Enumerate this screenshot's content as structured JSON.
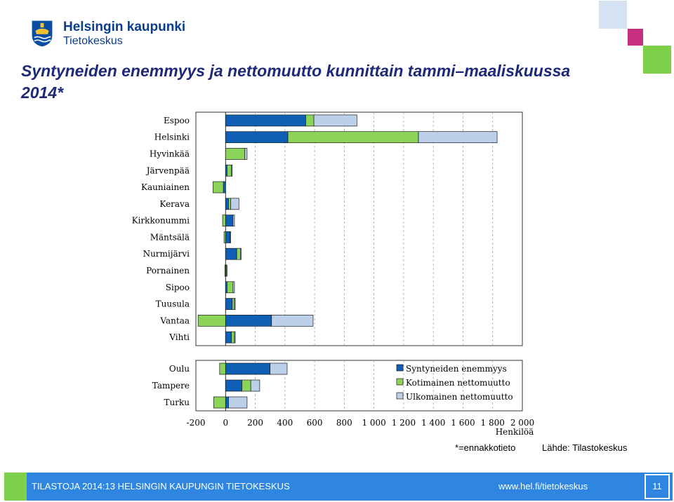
{
  "header": {
    "logo_line1": "Helsingin kaupunki",
    "logo_line2": "Tietokeskus"
  },
  "title": "Syntyneiden enemmyys ja nettomuutto kunnittain tammi–maaliskuussa 2014*",
  "colors": {
    "births": "#0f5fb5",
    "domestic": "#8cd35a",
    "foreign": "#bcd0ea",
    "footer_blue": "#2e86e0",
    "footer_green": "#7ed04b",
    "deco_pink": "#c72f7f",
    "deco_lightblue": "#d4e2f2"
  },
  "chart_data": {
    "type": "bar",
    "orientation": "horizontal",
    "stacked": true,
    "categories": [
      "Espoo",
      "Helsinki",
      "Hyvinkää",
      "Järvenpää",
      "Kauniainen",
      "Kerava",
      "Kirkkonummi",
      "Mäntsälä",
      "Nurmijärvi",
      "Pornainen",
      "Sipoo",
      "Tuusula",
      "Vantaa",
      "Vihti",
      "Oulu",
      "Tampere",
      "Turku"
    ],
    "groups": [
      {
        "categories": [
          "Espoo",
          "Helsinki",
          "Hyvinkää",
          "Järvenpää",
          "Kauniainen",
          "Kerava",
          "Kirkkonummi",
          "Mäntsälä",
          "Nurmijärvi",
          "Pornainen",
          "Sipoo",
          "Tuusula",
          "Vantaa",
          "Vihti"
        ]
      },
      {
        "categories": [
          "Oulu",
          "Tampere",
          "Turku"
        ]
      }
    ],
    "series": [
      {
        "name": "Syntyneiden enemmyys",
        "values": [
          540,
          420,
          0,
          10,
          -15,
          20,
          50,
          30,
          75,
          5,
          10,
          45,
          310,
          40,
          300,
          110,
          20
        ]
      },
      {
        "name": "Kotimainen nettomuutto",
        "values": [
          55,
          880,
          130,
          30,
          -70,
          15,
          -20,
          -10,
          25,
          -5,
          40,
          15,
          -185,
          20,
          -40,
          60,
          -80
        ]
      },
      {
        "name": "Ulkomainen nettomuutto",
        "values": [
          290,
          530,
          15,
          5,
          0,
          55,
          10,
          5,
          5,
          5,
          10,
          5,
          280,
          5,
          115,
          60,
          125
        ]
      }
    ],
    "x_ticks": [
      "-200",
      "0",
      "200",
      "400",
      "600",
      "800",
      "1 000",
      "1 200",
      "1 400",
      "1 600",
      "1 800",
      "2 000"
    ],
    "xlim": [
      -200,
      2000
    ],
    "xlabel": "Henkilöä",
    "legend_position": "right-middle",
    "grid": "vertical-dashed"
  },
  "footnotes": {
    "estimate_note": "*=ennakkotieto",
    "source": "Lähde: Tilastokeskus"
  },
  "footer": {
    "left_text": "TILASTOJA 2014:13 HELSINGIN KAUPUNGIN TIETOKESKUS",
    "url": "www.hel.fi/tietokeskus",
    "page_number": "11"
  }
}
